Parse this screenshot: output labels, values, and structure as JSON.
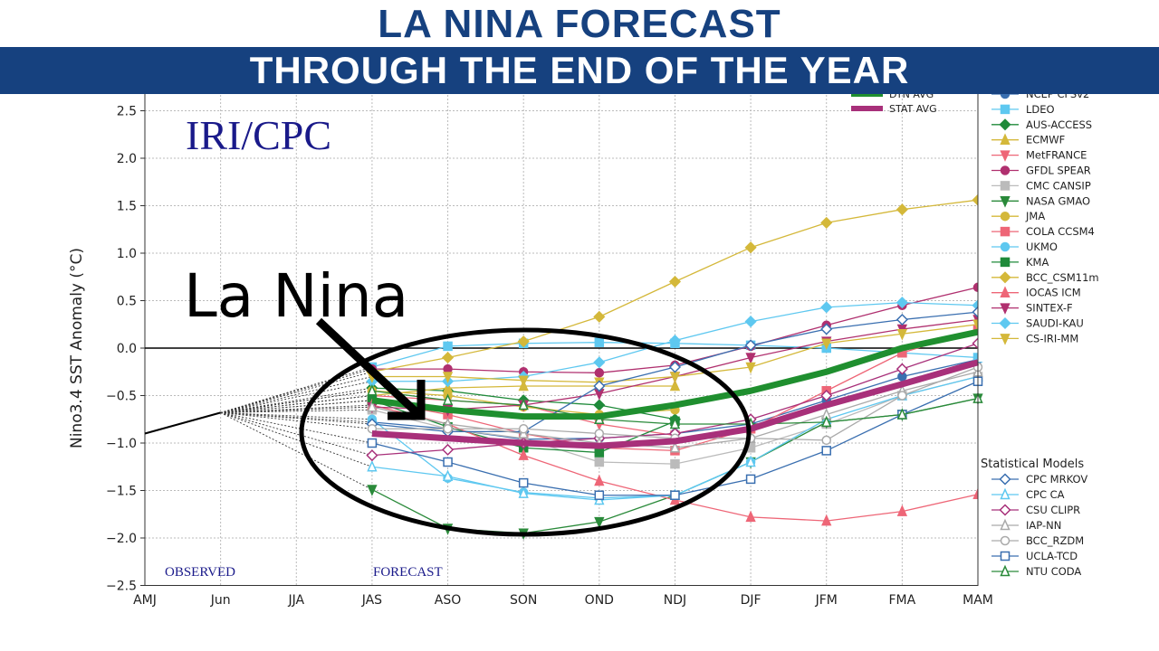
{
  "header": {
    "title": "LA NINA FORECAST",
    "subtitle": "THROUGH THE END OF THE YEAR"
  },
  "annotations": {
    "source": "IRI/CPC",
    "callout": "La Nina",
    "observed": "OBSERVED",
    "forecast": "FORECAST",
    "stat_header": "Statistical Models"
  },
  "colors": {
    "brand_blue": "#16417f",
    "dyn_avg": "#1f8f2f",
    "stat_avg": "#a8307a"
  },
  "chart_data": {
    "type": "line",
    "ylabel": "Nino3.4 SST Anomaly (°C)",
    "xlabel": "",
    "ylim": [
      -2.5,
      2.5
    ],
    "yticks": [
      "2.5",
      "2.0",
      "1.5",
      "1.0",
      "0.5",
      "0.0",
      "−0.5",
      "−1.0",
      "−1.5",
      "−2.0",
      "−2.5"
    ],
    "ytick_values": [
      2.5,
      2.0,
      1.5,
      1.0,
      0.5,
      0.0,
      -0.5,
      -1.0,
      -1.5,
      -2.0,
      -2.5
    ],
    "categories": [
      "AMJ",
      "Jun",
      "JJA",
      "JAS",
      "ASO",
      "SON",
      "OND",
      "NDJ",
      "DJF",
      "JFM",
      "FMA",
      "MAM"
    ],
    "grid": true,
    "observed": {
      "x": [
        "AMJ",
        "Jun"
      ],
      "values": [
        -0.9,
        -0.68
      ]
    },
    "forecast_start": "JAS",
    "averages": [
      {
        "name": "DYN AVG",
        "color": "#1f8f2f",
        "values": [
          -0.55,
          -0.65,
          -0.72,
          -0.72,
          -0.6,
          -0.45,
          -0.25,
          0.0,
          0.17
        ]
      },
      {
        "name": "STAT AVG",
        "color": "#a8307a",
        "values": [
          -0.9,
          -0.95,
          -1.0,
          -1.03,
          -0.98,
          -0.85,
          -0.6,
          -0.38,
          -0.15
        ]
      }
    ],
    "dynamical_models": [
      {
        "name": "NCEP CFSv2",
        "color": "#3a6fb0",
        "marker": "circle",
        "values": [
          -0.78,
          -0.85,
          -0.96,
          -0.95,
          -0.9,
          -0.8,
          -0.55,
          -0.3,
          -0.12
        ]
      },
      {
        "name": "LDEO",
        "color": "#5ec8f0",
        "marker": "square",
        "values": [
          -0.2,
          0.02,
          0.05,
          0.06,
          0.05,
          0.03,
          0.0,
          -0.05,
          -0.1
        ]
      },
      {
        "name": "AUS-ACCESS",
        "color": "#1f8a3a",
        "marker": "diamond",
        "values": [
          -0.42,
          -0.45,
          -0.55,
          -0.6,
          -0.75
        ]
      },
      {
        "name": "ECMWF",
        "color": "#d4b83a",
        "marker": "triangle-up",
        "values": [
          -0.5,
          -0.42,
          -0.4,
          -0.4,
          -0.4
        ]
      },
      {
        "name": "MetFRANCE",
        "color": "#ee6677",
        "marker": "triangle-down",
        "values": [
          -0.5,
          -0.55,
          -0.6,
          -0.8,
          -0.92
        ]
      },
      {
        "name": "GFDL SPEAR",
        "color": "#b0306f",
        "marker": "circle",
        "values": [
          -0.22,
          -0.22,
          -0.25,
          -0.26,
          -0.18,
          0.02,
          0.24,
          0.45,
          0.64
        ]
      },
      {
        "name": "CMC CANSIP",
        "color": "#bbbbbb",
        "marker": "square",
        "values": [
          -0.65,
          -0.85,
          -0.95,
          -1.2,
          -1.22,
          -1.05,
          -0.8,
          -0.5,
          -0.3
        ]
      },
      {
        "name": "NASA GMAO",
        "color": "#2a8a3a",
        "marker": "triangle-down",
        "values": [
          -1.49,
          -1.9,
          -1.95,
          -1.83,
          -1.55,
          -1.2,
          -0.78,
          -0.7,
          -0.53
        ]
      },
      {
        "name": "JMA",
        "color": "#d4b83a",
        "marker": "circle",
        "values": [
          -0.45,
          -0.5,
          -0.62,
          -0.7,
          -0.65
        ]
      },
      {
        "name": "COLA CCSM4",
        "color": "#ee6677",
        "marker": "square",
        "values": [
          -0.55,
          -0.7,
          -0.9,
          -1.05,
          -1.08,
          -0.85,
          -0.45,
          -0.05,
          0.2
        ]
      },
      {
        "name": "UKMO",
        "color": "#5ec8f0",
        "marker": "circle",
        "values": [
          -0.75,
          -1.37,
          -1.52,
          -1.58,
          -1.55,
          -1.2
        ]
      },
      {
        "name": "KMA",
        "color": "#1f8a3a",
        "marker": "square",
        "values": [
          -0.55,
          -0.83,
          -1.05,
          -1.1,
          -0.77
        ]
      },
      {
        "name": "BCC_CSM11m",
        "color": "#d4b83a",
        "marker": "diamond",
        "values": [
          -0.25,
          -0.1,
          0.07,
          0.33,
          0.7,
          1.06,
          1.32,
          1.46,
          1.56
        ]
      },
      {
        "name": "IOCAS ICM",
        "color": "#ee6677",
        "marker": "triangle-up",
        "values": [
          -0.6,
          -0.8,
          -1.13,
          -1.4,
          -1.6,
          -1.78,
          -1.82,
          -1.72,
          -1.54
        ]
      },
      {
        "name": "SINTEX-F",
        "color": "#b0306f",
        "marker": "triangle-down",
        "values": [
          -0.62,
          -0.65,
          -0.6,
          -0.48,
          -0.3,
          -0.1,
          0.07,
          0.2,
          0.3
        ]
      },
      {
        "name": "SAUDI-KAU",
        "color": "#5ec8f0",
        "marker": "diamond",
        "values": [
          -0.35,
          -0.35,
          -0.3,
          -0.15,
          0.08,
          0.28,
          0.43,
          0.48,
          0.45
        ]
      },
      {
        "name": "CS-IRI-MM",
        "color": "#d4b83a",
        "marker": "triangle-down",
        "values": [
          -0.3,
          -0.3,
          -0.34,
          -0.36,
          -0.3,
          -0.2,
          0.05,
          0.15,
          0.25
        ]
      }
    ],
    "statistical_models": [
      {
        "name": "CPC MRKOV",
        "color": "#3a6fb0",
        "marker": "diamond",
        "values": [
          -0.8,
          -0.88,
          -0.88,
          -0.4,
          -0.2,
          0.03,
          0.2,
          0.3,
          0.38
        ]
      },
      {
        "name": "CPC CA",
        "color": "#5ec8f0",
        "marker": "triangle-up",
        "values": [
          -1.25,
          -1.35,
          -1.53,
          -1.6,
          -1.55,
          -1.2,
          -0.75,
          -0.5,
          -0.3
        ]
      },
      {
        "name": "CSU CLIPR",
        "color": "#a8307a",
        "marker": "diamond",
        "values": [
          -1.13,
          -1.07,
          -1.0,
          -0.95,
          -0.9,
          -0.75,
          -0.5,
          -0.22,
          0.05
        ]
      },
      {
        "name": "IAP-NN",
        "color": "#aaaaaa",
        "marker": "triangle-up",
        "values": [
          -0.62,
          -0.8,
          -0.9,
          -1.0,
          -1.05,
          -0.95,
          -0.7,
          -0.45,
          -0.25
        ]
      },
      {
        "name": "BCC_RZDM",
        "color": "#aaaaaa",
        "marker": "circle",
        "values": [
          -0.85,
          -0.85,
          -0.85,
          -0.9,
          -0.95,
          -0.95,
          -0.97,
          -0.5,
          -0.2
        ]
      },
      {
        "name": "UCLA-TCD",
        "color": "#3a6fb0",
        "marker": "square",
        "values": [
          -1.0,
          -1.2,
          -1.42,
          -1.55,
          -1.55,
          -1.38,
          -1.08,
          -0.7,
          -0.35
        ]
      },
      {
        "name": "NTU CODA",
        "color": "#2a8a3a",
        "marker": "triangle-up",
        "values": [
          -0.45,
          -0.55,
          -0.6,
          -0.75,
          -0.8,
          -0.8,
          -0.78,
          -0.7,
          -0.53
        ]
      }
    ]
  }
}
